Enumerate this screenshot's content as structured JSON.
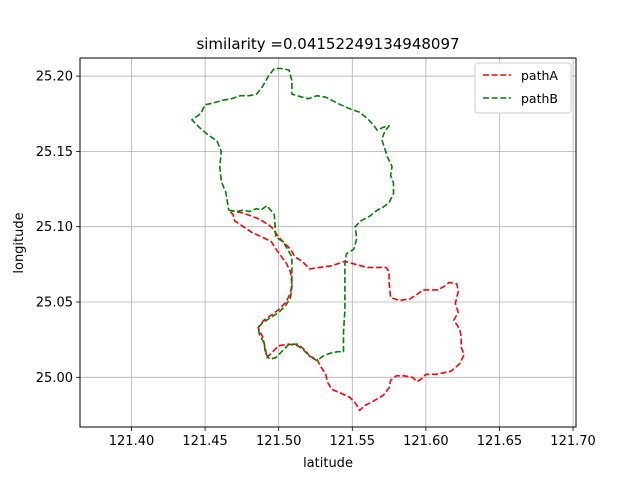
{
  "chart_data": {
    "type": "line",
    "title": "similarity =0.04152249134948097",
    "xlabel": "latitude",
    "ylabel": "longitude",
    "xlim": [
      121.365,
      121.702
    ],
    "ylim": [
      24.967,
      25.212
    ],
    "xticks": [
      121.4,
      121.45,
      121.5,
      121.55,
      121.6,
      121.65,
      121.7
    ],
    "xtick_labels": [
      "121.40",
      "121.45",
      "121.50",
      "121.55",
      "121.60",
      "121.65",
      "121.70"
    ],
    "yticks": [
      25.0,
      25.05,
      25.1,
      25.15,
      25.2
    ],
    "ytick_labels": [
      "25.00",
      "25.05",
      "25.10",
      "25.15",
      "25.20"
    ],
    "grid": true,
    "legend_position": "top-right",
    "series": [
      {
        "name": "pathA",
        "color": "#ff0000",
        "style": "dashed",
        "points": [
          [
            121.466,
            25.111
          ],
          [
            121.476,
            25.109
          ],
          [
            121.487,
            25.105
          ],
          [
            121.495,
            25.1
          ],
          [
            121.5,
            25.093
          ],
          [
            121.505,
            25.088
          ],
          [
            121.508,
            25.085
          ],
          [
            121.511,
            25.08
          ],
          [
            121.516,
            25.077
          ],
          [
            121.521,
            25.072
          ],
          [
            121.528,
            25.073
          ],
          [
            121.536,
            25.074
          ],
          [
            121.545,
            25.077
          ],
          [
            121.552,
            25.075
          ],
          [
            121.56,
            25.073
          ],
          [
            121.568,
            25.073
          ],
          [
            121.573,
            25.073
          ],
          [
            121.575,
            25.07
          ],
          [
            121.575,
            25.063
          ],
          [
            121.576,
            25.053
          ],
          [
            121.582,
            25.051
          ],
          [
            121.589,
            25.052
          ],
          [
            121.594,
            25.055
          ],
          [
            121.598,
            25.058
          ],
          [
            121.603,
            25.058
          ],
          [
            121.608,
            25.058
          ],
          [
            121.612,
            25.06
          ],
          [
            121.616,
            25.063
          ],
          [
            121.621,
            25.062
          ],
          [
            121.622,
            25.057
          ],
          [
            121.62,
            25.049
          ],
          [
            121.622,
            25.043
          ],
          [
            121.619,
            25.038
          ],
          [
            121.623,
            25.032
          ],
          [
            121.624,
            25.027
          ],
          [
            121.624,
            25.02
          ],
          [
            121.626,
            25.015
          ],
          [
            121.623,
            25.009
          ],
          [
            121.617,
            25.004
          ],
          [
            121.607,
            25.002
          ],
          [
            121.6,
            25.002
          ],
          [
            121.597,
            24.999
          ],
          [
            121.594,
            24.997
          ],
          [
            121.591,
            25.0
          ],
          [
            121.585,
            25.001
          ],
          [
            121.58,
            25.001
          ],
          [
            121.576,
            24.998
          ],
          [
            121.575,
            24.993
          ],
          [
            121.571,
            24.988
          ],
          [
            121.564,
            24.984
          ],
          [
            121.558,
            24.981
          ],
          [
            121.555,
            24.978
          ],
          [
            121.552,
            24.983
          ],
          [
            121.548,
            24.987
          ],
          [
            121.541,
            24.99
          ],
          [
            121.536,
            24.992
          ],
          [
            121.533,
            24.997
          ],
          [
            121.532,
            25.002
          ],
          [
            121.528,
            25.008
          ],
          [
            121.526,
            25.012
          ],
          [
            121.521,
            25.014
          ],
          [
            121.517,
            25.018
          ],
          [
            121.513,
            25.021
          ],
          [
            121.507,
            25.022
          ],
          [
            121.5,
            25.021
          ],
          [
            121.495,
            25.016
          ],
          [
            121.492,
            25.013
          ],
          [
            121.491,
            25.019
          ],
          [
            121.489,
            25.027
          ],
          [
            121.486,
            25.033
          ],
          [
            121.49,
            25.038
          ],
          [
            121.496,
            25.042
          ],
          [
            121.5,
            25.045
          ],
          [
            121.505,
            25.05
          ],
          [
            121.508,
            25.056
          ],
          [
            121.509,
            25.062
          ],
          [
            121.508,
            25.07
          ],
          [
            121.505,
            25.076
          ],
          [
            121.502,
            25.08
          ],
          [
            121.499,
            25.084
          ],
          [
            121.495,
            25.09
          ],
          [
            121.489,
            25.093
          ],
          [
            121.482,
            25.096
          ],
          [
            121.476,
            25.1
          ],
          [
            121.47,
            25.104
          ],
          [
            121.469,
            25.108
          ],
          [
            121.466,
            25.111
          ]
        ]
      },
      {
        "name": "pathB",
        "color": "#008000",
        "style": "dashed",
        "points": [
          [
            121.466,
            25.111
          ],
          [
            121.471,
            25.11
          ],
          [
            121.476,
            25.111
          ],
          [
            121.48,
            25.11
          ],
          [
            121.485,
            25.112
          ],
          [
            121.488,
            25.111
          ],
          [
            121.492,
            25.114
          ],
          [
            121.497,
            25.108
          ],
          [
            121.498,
            25.093
          ],
          [
            121.503,
            25.09
          ],
          [
            121.506,
            25.085
          ],
          [
            121.509,
            25.08
          ],
          [
            121.509,
            25.07
          ],
          [
            121.509,
            25.06
          ],
          [
            121.508,
            25.053
          ],
          [
            121.505,
            25.048
          ],
          [
            121.5,
            25.043
          ],
          [
            121.495,
            25.04
          ],
          [
            121.489,
            25.036
          ],
          [
            121.486,
            25.033
          ],
          [
            121.487,
            25.028
          ],
          [
            121.49,
            25.023
          ],
          [
            121.491,
            25.016
          ],
          [
            121.494,
            25.012
          ],
          [
            121.498,
            25.013
          ],
          [
            121.503,
            25.018
          ],
          [
            121.507,
            25.022
          ],
          [
            121.513,
            25.022
          ],
          [
            121.518,
            25.018
          ],
          [
            121.521,
            25.014
          ],
          [
            121.526,
            25.011
          ],
          [
            121.53,
            25.014
          ],
          [
            121.535,
            25.016
          ],
          [
            121.54,
            25.017
          ],
          [
            121.544,
            25.017
          ],
          [
            121.544,
            25.03
          ],
          [
            121.545,
            25.045
          ],
          [
            121.545,
            25.06
          ],
          [
            121.545,
            25.075
          ],
          [
            121.546,
            25.082
          ],
          [
            121.551,
            25.085
          ],
          [
            121.553,
            25.092
          ],
          [
            121.552,
            25.1
          ],
          [
            121.556,
            25.104
          ],
          [
            121.562,
            25.107
          ],
          [
            121.567,
            25.111
          ],
          [
            121.571,
            25.113
          ],
          [
            121.575,
            25.116
          ],
          [
            121.578,
            25.122
          ],
          [
            121.578,
            25.129
          ],
          [
            121.576,
            25.134
          ],
          [
            121.577,
            25.14
          ],
          [
            121.574,
            25.146
          ],
          [
            121.572,
            25.152
          ],
          [
            121.57,
            25.158
          ],
          [
            121.572,
            25.163
          ],
          [
            121.575,
            25.167
          ],
          [
            121.571,
            25.166
          ],
          [
            121.567,
            25.164
          ],
          [
            121.564,
            25.168
          ],
          [
            121.56,
            25.172
          ],
          [
            121.555,
            25.176
          ],
          [
            121.549,
            25.178
          ],
          [
            121.542,
            25.181
          ],
          [
            121.536,
            25.184
          ],
          [
            121.532,
            25.186
          ],
          [
            121.526,
            25.187
          ],
          [
            121.52,
            25.185
          ],
          [
            121.516,
            25.186
          ],
          [
            121.509,
            25.188
          ],
          [
            121.509,
            25.197
          ],
          [
            121.507,
            25.204
          ],
          [
            121.502,
            25.205
          ],
          [
            121.497,
            25.205
          ],
          [
            121.493,
            25.2
          ],
          [
            121.489,
            25.193
          ],
          [
            121.485,
            25.188
          ],
          [
            121.48,
            25.187
          ],
          [
            121.474,
            25.187
          ],
          [
            121.468,
            25.185
          ],
          [
            121.462,
            25.184
          ],
          [
            121.455,
            25.182
          ],
          [
            121.45,
            25.181
          ],
          [
            121.447,
            25.175
          ],
          [
            121.441,
            25.171
          ],
          [
            121.446,
            25.166
          ],
          [
            121.452,
            25.161
          ],
          [
            121.458,
            25.157
          ],
          [
            121.461,
            25.15
          ],
          [
            121.46,
            25.14
          ],
          [
            121.461,
            25.13
          ],
          [
            121.464,
            25.123
          ],
          [
            121.466,
            25.111
          ]
        ]
      }
    ]
  }
}
